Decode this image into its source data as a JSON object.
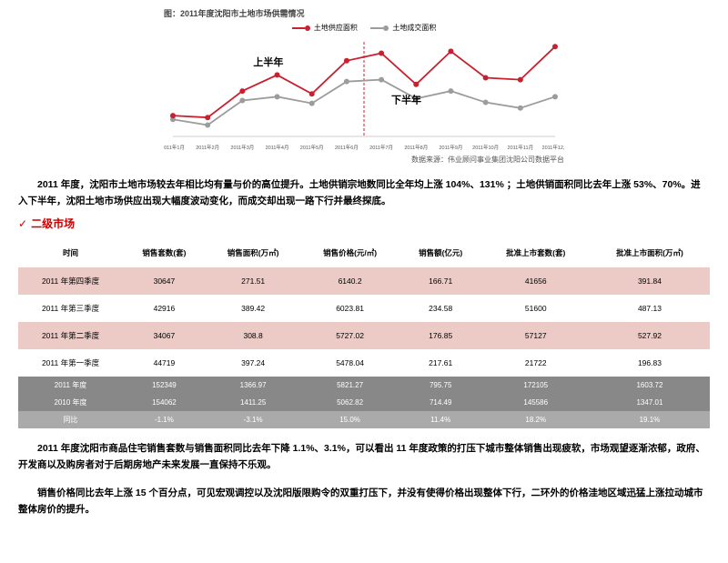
{
  "chart": {
    "title": "图：2011年度沈阳市土地市场供需情况",
    "legend": {
      "supply": {
        "label": "土地供应面积",
        "color": "#c8202f"
      },
      "deal": {
        "label": "土地成交面积",
        "color": "#9c9c9c"
      }
    },
    "annotations": {
      "H1": "上半年",
      "H2": "下半年"
    },
    "xlabels": [
      "2011年1月",
      "2011年2月",
      "2011年3月",
      "2011年4月",
      "2011年5月",
      "2011年6月",
      "2011年7月",
      "2011年8月",
      "2011年9月",
      "2011年10月",
      "2011年11月",
      "2011年12月"
    ],
    "supply_series": [
      22,
      20,
      48,
      65,
      45,
      80,
      88,
      55,
      90,
      62,
      60,
      95
    ],
    "deal_series": [
      18,
      12,
      38,
      42,
      35,
      58,
      60,
      40,
      48,
      36,
      30,
      42
    ],
    "yrange": [
      0,
      100
    ],
    "marker_r": 3,
    "stroke_w": 1.8,
    "divider_color": "#c8202f",
    "source": "数据来源：伟业顾问事业集团沈阳公司数据平台"
  },
  "para1": "2011 年度，沈阳市土地市场较去年相比均有量与价的高位提升。土地供销宗地数同比全年均上涨 104%、131% ；土地供销面积同比去年上涨 53%、70%。进入下半年，沈阳土地市场供应出现大幅度波动变化，而成交却出现一路下行并最终探底。",
  "section": "二级市场",
  "table": {
    "headers": [
      "时间",
      "销售套数(套)",
      "销售面积(万㎡)",
      "销售价格(元/㎡)",
      "销售额(亿元)",
      "批准上市套数(套)",
      "批准上市面积(万㎡)"
    ],
    "rows": [
      {
        "cls": "pink",
        "cells": [
          "2011 年第四季度",
          "30647",
          "271.51",
          "6140.2",
          "166.71",
          "41656",
          "391.84"
        ]
      },
      {
        "cls": "white",
        "cells": [
          "2011 年第三季度",
          "42916",
          "389.42",
          "6023.81",
          "234.58",
          "51600",
          "487.13"
        ]
      },
      {
        "cls": "pink",
        "cells": [
          "2011 年第二季度",
          "34067",
          "308.8",
          "5727.02",
          "176.85",
          "57127",
          "527.92"
        ]
      },
      {
        "cls": "white",
        "cells": [
          "2011 年第一季度",
          "44719",
          "397.24",
          "5478.04",
          "217.61",
          "21722",
          "196.83"
        ]
      }
    ],
    "summary": [
      {
        "cls": "year",
        "cells": [
          "2011 年度",
          "152349",
          "1366.97",
          "5821.27",
          "795.75",
          "172105",
          "1603.72"
        ]
      },
      {
        "cls": "year",
        "cells": [
          "2010 年度",
          "154062",
          "1411.25",
          "5062.82",
          "714.49",
          "145586",
          "1347.01"
        ]
      },
      {
        "cls": "yoy",
        "cells": [
          "同比",
          "-1.1%",
          "-3.1%",
          "15.0%",
          "11.4%",
          "18.2%",
          "19.1%"
        ]
      }
    ]
  },
  "para2": "2011 年度沈阳市商品住宅销售套数与销售面积同比去年下降 1.1%、3.1%，可以看出 11 年度政策的打压下城市整体销售出现疲软，市场观望逐渐浓郁，政府、开发商以及购房者对于后期房地产未来发展一直保持不乐观。",
  "para3": "销售价格同比去年上涨 15 个百分点，可见宏观调控以及沈阳版限购令的双重打压下，并没有使得价格出现整体下行，二环外的价格洼地区域迅猛上涨拉动城市整体房价的提升。"
}
